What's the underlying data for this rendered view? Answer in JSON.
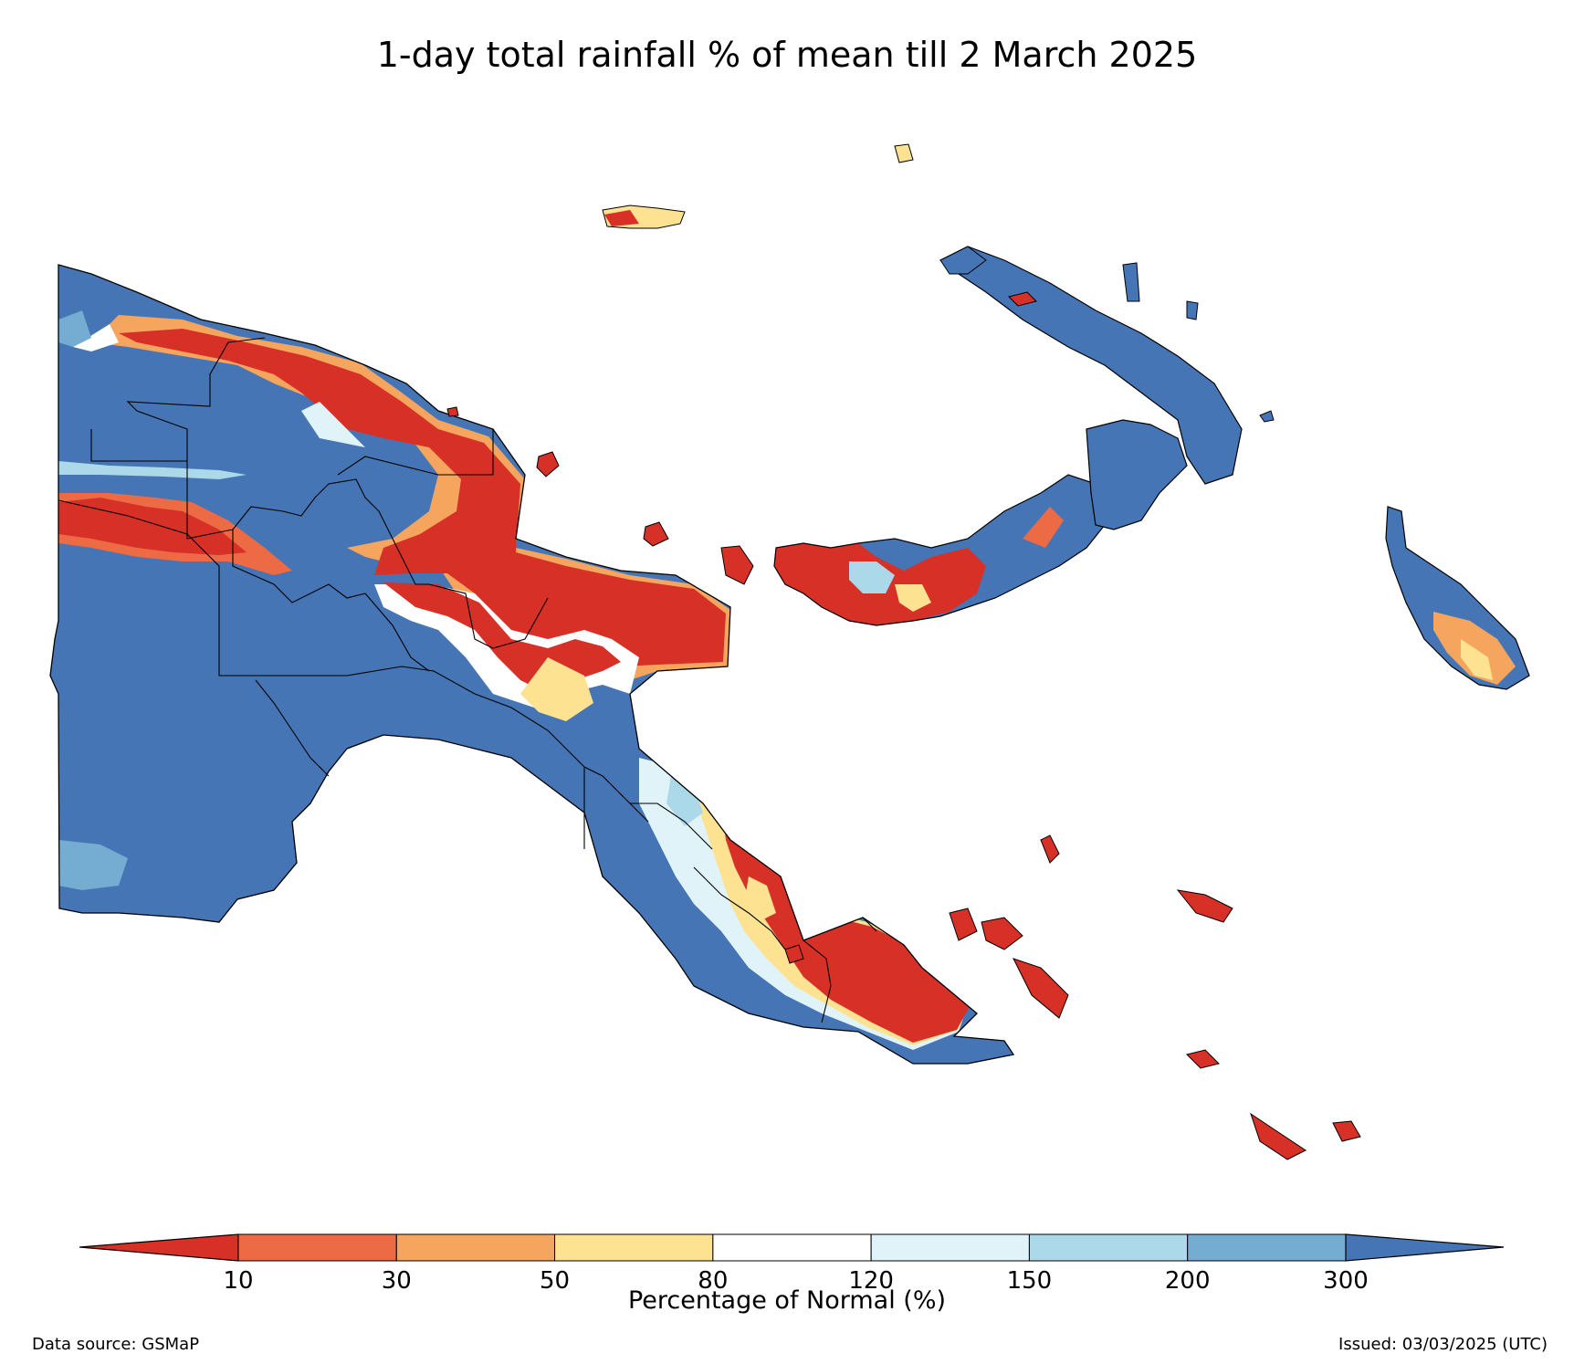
{
  "title": "1-day total rainfall % of mean till 2 March 2025",
  "colorbar": {
    "label": "Percentage of Normal (%)",
    "ticks": [
      "10",
      "30",
      "50",
      "80",
      "120",
      "150",
      "200",
      "300"
    ],
    "colors": [
      "#d73027",
      "#ec6a44",
      "#f6a55e",
      "#fde292",
      "#ffffff",
      "#e0f3f8",
      "#abd9e9",
      "#74add1",
      "#4575b4"
    ]
  },
  "source": "Data source: GSMaP",
  "issued": "Issued: 03/03/2025 (UTC)"
}
